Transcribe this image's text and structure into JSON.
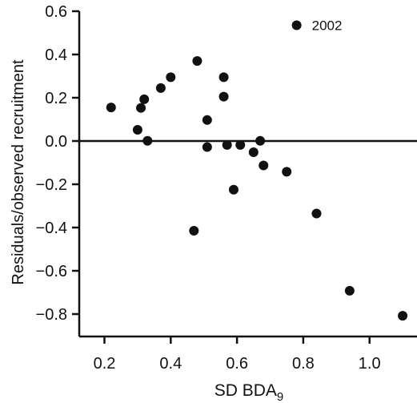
{
  "colors": {
    "ink": "#111111",
    "background": "#ffffff"
  },
  "chart_data": {
    "type": "scatter",
    "title": "",
    "xlabel": "SD BDA",
    "xlabel_subscript": "9",
    "ylabel": "Residuals/observed recruitment",
    "xlim": [
      0.1,
      1.15
    ],
    "ylim": [
      -0.9,
      0.6
    ],
    "x_ticks": [
      0.2,
      0.4,
      0.6,
      0.8,
      1.0
    ],
    "x_tick_labels": [
      "0.2",
      "0.4",
      "0.6",
      "0.8",
      "1.0"
    ],
    "y_ticks": [
      0.6,
      0.4,
      0.2,
      0.0,
      -0.2,
      -0.4,
      -0.6,
      -0.8
    ],
    "y_tick_labels": [
      "0.6",
      "0.4",
      "0.2",
      "0.0",
      "−0.2",
      "−0.4",
      "−0.6",
      "−0.8"
    ],
    "reference_line_y": 0.0,
    "grid": false,
    "points": [
      {
        "x": 0.22,
        "y": 0.155
      },
      {
        "x": 0.3,
        "y": 0.052
      },
      {
        "x": 0.31,
        "y": 0.153
      },
      {
        "x": 0.32,
        "y": 0.193
      },
      {
        "x": 0.33,
        "y": 0.001
      },
      {
        "x": 0.37,
        "y": 0.245
      },
      {
        "x": 0.4,
        "y": 0.295
      },
      {
        "x": 0.47,
        "y": -0.415
      },
      {
        "x": 0.48,
        "y": 0.37
      },
      {
        "x": 0.51,
        "y": 0.097
      },
      {
        "x": 0.51,
        "y": -0.028
      },
      {
        "x": 0.56,
        "y": 0.295
      },
      {
        "x": 0.56,
        "y": 0.205
      },
      {
        "x": 0.57,
        "y": -0.018
      },
      {
        "x": 0.59,
        "y": -0.225
      },
      {
        "x": 0.61,
        "y": -0.018
      },
      {
        "x": 0.65,
        "y": -0.052
      },
      {
        "x": 0.67,
        "y": 0.001
      },
      {
        "x": 0.68,
        "y": -0.113
      },
      {
        "x": 0.75,
        "y": -0.142
      },
      {
        "x": 0.84,
        "y": -0.335
      },
      {
        "x": 0.94,
        "y": -0.692
      },
      {
        "x": 1.1,
        "y": -0.808
      }
    ],
    "highlight": {
      "x": 0.78,
      "y": 0.535,
      "label": "2002"
    }
  }
}
